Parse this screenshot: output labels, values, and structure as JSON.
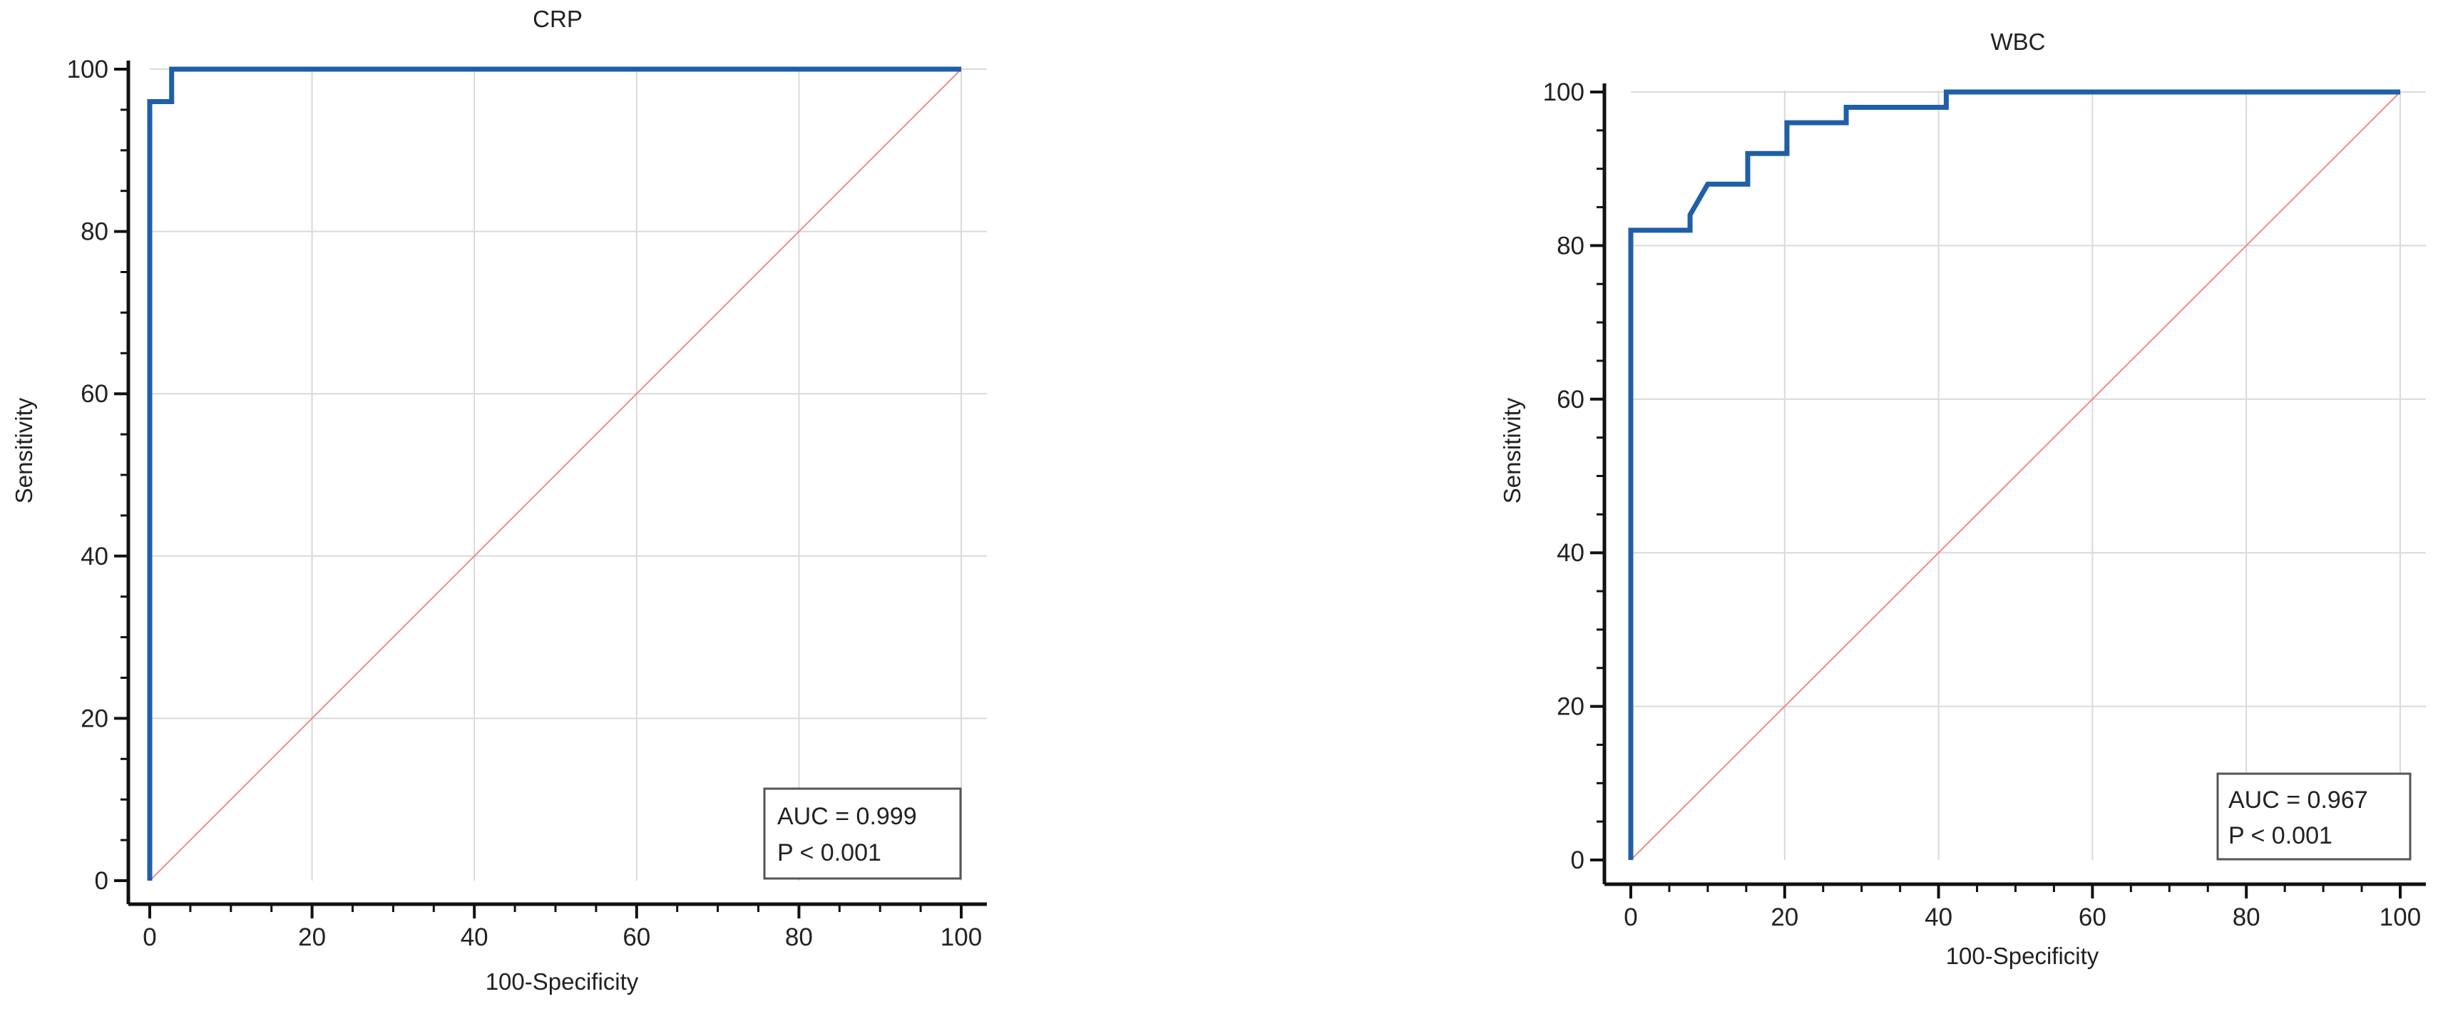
{
  "chart_data": [
    {
      "type": "line",
      "title": "CRP",
      "xlabel": "100-Specificity",
      "ylabel": "Sensitivity",
      "xlim": [
        0,
        100
      ],
      "ylim": [
        0,
        100
      ],
      "xticks": [
        0,
        20,
        40,
        60,
        80,
        100
      ],
      "yticks": [
        0,
        20,
        40,
        60,
        80,
        100
      ],
      "grid": true,
      "series": [
        {
          "role": "roc",
          "color": "#1f5fa8",
          "x": [
            0,
            0,
            2.7,
            2.7,
            100
          ],
          "y": [
            0,
            96,
            96,
            100,
            100
          ]
        },
        {
          "role": "reference",
          "color": "#f08a8a",
          "x": [
            0,
            100
          ],
          "y": [
            0,
            100
          ]
        }
      ],
      "annotation": {
        "line1": "AUC = 0.999",
        "line2": "P < 0.001",
        "position": "bottom-right"
      }
    },
    {
      "type": "line",
      "title": "WBC",
      "xlabel": "100-Specificity",
      "ylabel": "Sensitivity",
      "xlim": [
        0,
        100
      ],
      "ylim": [
        0,
        100
      ],
      "xticks": [
        0,
        20,
        40,
        60,
        80,
        100
      ],
      "yticks": [
        0,
        20,
        40,
        60,
        80,
        100
      ],
      "grid": true,
      "series": [
        {
          "role": "roc",
          "color": "#1f5fa8",
          "x": [
            0,
            0,
            7.7,
            7.7,
            10,
            10,
            15.2,
            15.2,
            20.3,
            20.3,
            28,
            28,
            41,
            41,
            100
          ],
          "y": [
            0,
            82,
            82,
            84,
            88,
            88,
            88,
            92,
            92,
            96,
            96,
            98,
            98,
            100,
            100
          ]
        },
        {
          "role": "reference",
          "color": "#f08a8a",
          "x": [
            0,
            100
          ],
          "y": [
            0,
            100
          ]
        }
      ],
      "annotation": {
        "line1": "AUC = 0.967",
        "line2": "P < 0.001",
        "position": "bottom-right"
      }
    }
  ]
}
